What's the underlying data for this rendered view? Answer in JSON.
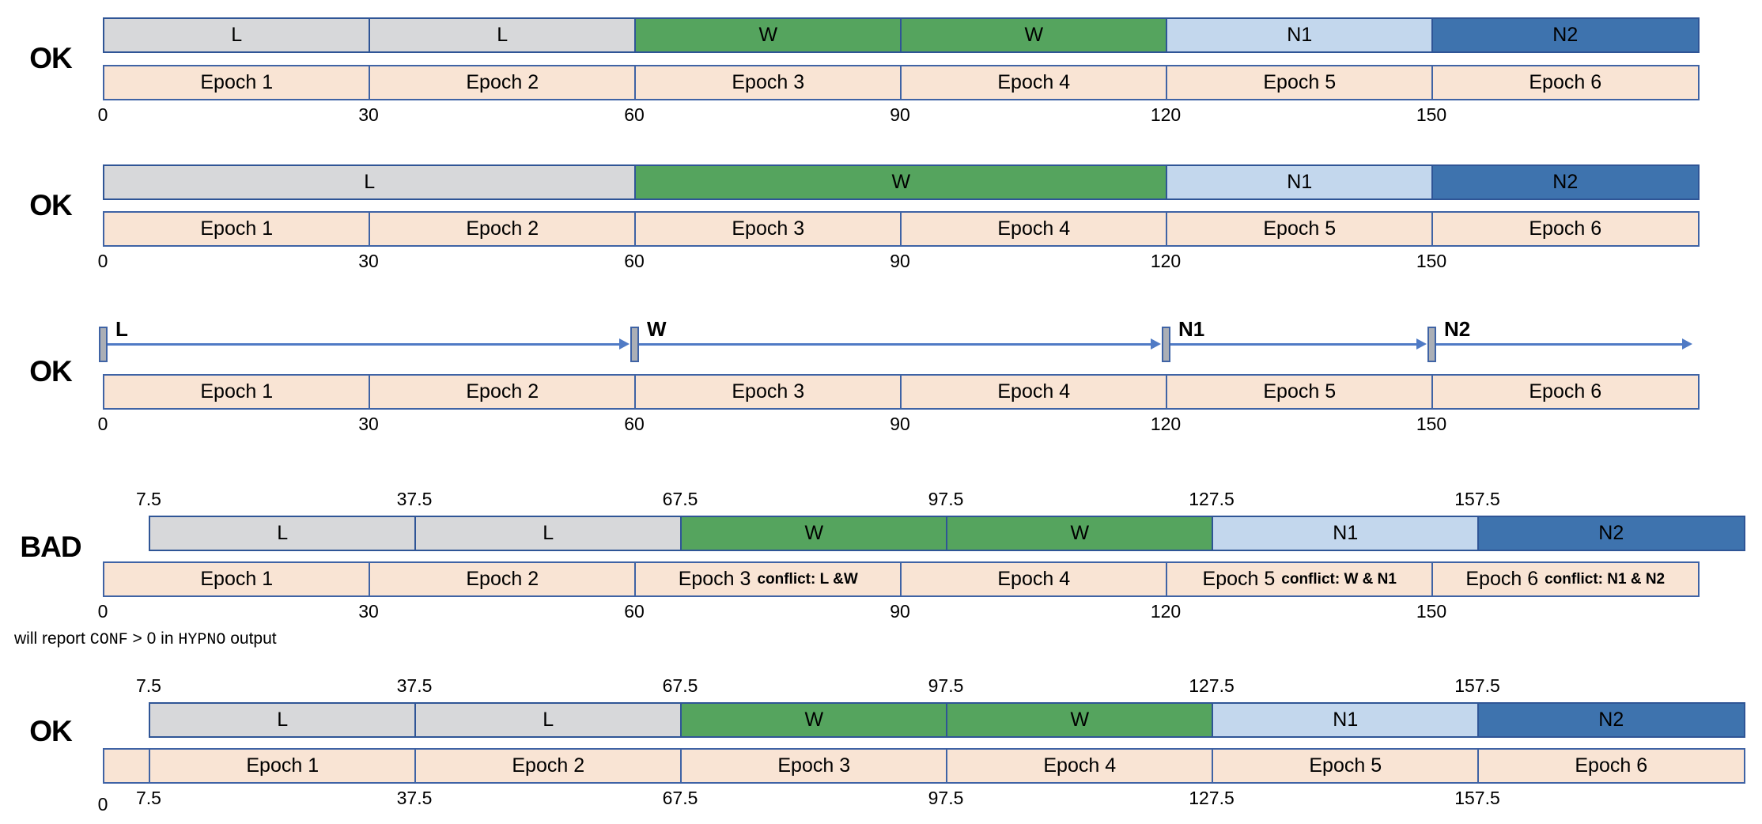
{
  "colors": {
    "stage_border": "#2f5596",
    "epoch_border": "#3f63a5",
    "epoch_fill": "#f9e4d4",
    "arrow": "#4f7ac5",
    "marker_fill": "#abafb6",
    "marker_border": "#3f63a5",
    "stage_fill": {
      "L": "#d7d8da",
      "W": "#55a45e",
      "N1": "#c3d7ed",
      "N2": "#3e73ae"
    }
  },
  "note": {
    "parts": [
      {
        "text": "will report "
      },
      {
        "text": "CONF",
        "mono": true
      },
      {
        "text": " > 0 in "
      },
      {
        "text": "HYPNO",
        "mono": true
      },
      {
        "text": " output"
      }
    ]
  },
  "groups": [
    {
      "verdict": "OK",
      "kind": "bars",
      "shifted": false,
      "epoch_shifted": false,
      "bottom_axis_shifted": false,
      "stages": [
        {
          "label": "L",
          "start": 0,
          "end": 30
        },
        {
          "label": "L",
          "start": 30,
          "end": 60
        },
        {
          "label": "W",
          "start": 60,
          "end": 90
        },
        {
          "label": "W",
          "start": 90,
          "end": 120
        },
        {
          "label": "N1",
          "start": 120,
          "end": 150
        },
        {
          "label": "N2",
          "start": 150,
          "end": 180
        }
      ],
      "epochs": [
        {
          "label": "Epoch 1",
          "start": 0,
          "end": 30
        },
        {
          "label": "Epoch 2",
          "start": 30,
          "end": 60
        },
        {
          "label": "Epoch 3",
          "start": 60,
          "end": 90
        },
        {
          "label": "Epoch 4",
          "start": 90,
          "end": 120
        },
        {
          "label": "Epoch 5",
          "start": 120,
          "end": 150
        },
        {
          "label": "Epoch 6",
          "start": 150,
          "end": 180
        }
      ],
      "bottom_axis": [
        {
          "label": "0",
          "t": 0
        },
        {
          "label": "30",
          "t": 30
        },
        {
          "label": "60",
          "t": 60
        },
        {
          "label": "90",
          "t": 90
        },
        {
          "label": "120",
          "t": 120
        },
        {
          "label": "150",
          "t": 150
        }
      ]
    },
    {
      "verdict": "OK",
      "kind": "bars",
      "shifted": false,
      "epoch_shifted": false,
      "bottom_axis_shifted": false,
      "stages": [
        {
          "label": "L",
          "start": 0,
          "end": 60
        },
        {
          "label": "W",
          "start": 60,
          "end": 120
        },
        {
          "label": "N1",
          "start": 120,
          "end": 150
        },
        {
          "label": "N2",
          "start": 150,
          "end": 180
        }
      ],
      "epochs": [
        {
          "label": "Epoch 1",
          "start": 0,
          "end": 30
        },
        {
          "label": "Epoch 2",
          "start": 30,
          "end": 60
        },
        {
          "label": "Epoch 3",
          "start": 60,
          "end": 90
        },
        {
          "label": "Epoch 4",
          "start": 90,
          "end": 120
        },
        {
          "label": "Epoch 5",
          "start": 120,
          "end": 150
        },
        {
          "label": "Epoch 6",
          "start": 150,
          "end": 180
        }
      ],
      "bottom_axis": [
        {
          "label": "0",
          "t": 0
        },
        {
          "label": "30",
          "t": 30
        },
        {
          "label": "60",
          "t": 60
        },
        {
          "label": "90",
          "t": 90
        },
        {
          "label": "120",
          "t": 120
        },
        {
          "label": "150",
          "t": 150
        }
      ]
    },
    {
      "verdict": "OK",
      "kind": "markers",
      "shifted": false,
      "epoch_shifted": false,
      "bottom_axis_shifted": false,
      "markers": [
        {
          "label": "L",
          "t": 0
        },
        {
          "label": "W",
          "t": 60
        },
        {
          "label": "N1",
          "t": 120
        },
        {
          "label": "N2",
          "t": 150
        }
      ],
      "arrow_end_t": 180,
      "epochs": [
        {
          "label": "Epoch 1",
          "start": 0,
          "end": 30
        },
        {
          "label": "Epoch 2",
          "start": 30,
          "end": 60
        },
        {
          "label": "Epoch 3",
          "start": 60,
          "end": 90
        },
        {
          "label": "Epoch 4",
          "start": 90,
          "end": 120
        },
        {
          "label": "Epoch 5",
          "start": 120,
          "end": 150
        },
        {
          "label": "Epoch 6",
          "start": 150,
          "end": 180
        }
      ],
      "bottom_axis": [
        {
          "label": "0",
          "t": 0
        },
        {
          "label": "30",
          "t": 30
        },
        {
          "label": "60",
          "t": 60
        },
        {
          "label": "90",
          "t": 90
        },
        {
          "label": "120",
          "t": 120
        },
        {
          "label": "150",
          "t": 150
        }
      ]
    },
    {
      "verdict": "BAD",
      "kind": "bars",
      "shifted": true,
      "epoch_shifted": false,
      "bottom_axis_shifted": false,
      "top_axis": [
        {
          "label": "7.5",
          "t": 7.5
        },
        {
          "label": "37.5",
          "t": 37.5
        },
        {
          "label": "67.5",
          "t": 67.5
        },
        {
          "label": "97.5",
          "t": 97.5
        },
        {
          "label": "127.5",
          "t": 127.5
        },
        {
          "label": "157.5",
          "t": 157.5
        }
      ],
      "stages": [
        {
          "label": "L",
          "start": 7.5,
          "end": 37.5
        },
        {
          "label": "L",
          "start": 37.5,
          "end": 67.5
        },
        {
          "label": "W",
          "start": 67.5,
          "end": 97.5
        },
        {
          "label": "W",
          "start": 97.5,
          "end": 127.5
        },
        {
          "label": "N1",
          "start": 127.5,
          "end": 157.5
        },
        {
          "label": "N2",
          "start": 157.5,
          "end": 187.5
        }
      ],
      "epochs": [
        {
          "label": "Epoch 1",
          "start": 0,
          "end": 30
        },
        {
          "label": "Epoch 2",
          "start": 30,
          "end": 60
        },
        {
          "label": "Epoch 3",
          "conflict": "conflict: L &W",
          "start": 60,
          "end": 90
        },
        {
          "label": "Epoch 4",
          "start": 90,
          "end": 120
        },
        {
          "label": "Epoch 5",
          "conflict": "conflict: W & N1",
          "start": 120,
          "end": 150
        },
        {
          "label": "Epoch 6",
          "conflict": "conflict: N1 & N2",
          "start": 150,
          "end": 180
        }
      ],
      "bottom_axis": [
        {
          "label": "0",
          "t": 0
        },
        {
          "label": "30",
          "t": 30
        },
        {
          "label": "60",
          "t": 60
        },
        {
          "label": "90",
          "t": 90
        },
        {
          "label": "120",
          "t": 120
        },
        {
          "label": "150",
          "t": 150
        }
      ]
    },
    {
      "verdict": "OK",
      "kind": "bars",
      "shifted": true,
      "epoch_shifted": true,
      "bottom_axis_shifted": true,
      "top_axis": [
        {
          "label": "7.5",
          "t": 7.5
        },
        {
          "label": "37.5",
          "t": 37.5
        },
        {
          "label": "67.5",
          "t": 67.5
        },
        {
          "label": "97.5",
          "t": 97.5
        },
        {
          "label": "127.5",
          "t": 127.5
        },
        {
          "label": "157.5",
          "t": 157.5
        }
      ],
      "stages": [
        {
          "label": "L",
          "start": 7.5,
          "end": 37.5
        },
        {
          "label": "L",
          "start": 37.5,
          "end": 67.5
        },
        {
          "label": "W",
          "start": 67.5,
          "end": 97.5
        },
        {
          "label": "W",
          "start": 97.5,
          "end": 127.5
        },
        {
          "label": "N1",
          "start": 127.5,
          "end": 157.5
        },
        {
          "label": "N2",
          "start": 157.5,
          "end": 187.5
        }
      ],
      "epochs": [
        {
          "label": "",
          "start": 0,
          "end": 7.5,
          "narrow": true
        },
        {
          "label": "Epoch 1",
          "start": 7.5,
          "end": 37.5
        },
        {
          "label": "Epoch 2",
          "start": 37.5,
          "end": 67.5
        },
        {
          "label": "Epoch 3",
          "start": 67.5,
          "end": 97.5
        },
        {
          "label": "Epoch 4",
          "start": 97.5,
          "end": 127.5
        },
        {
          "label": "Epoch 5",
          "start": 127.5,
          "end": 157.5
        },
        {
          "label": "Epoch 6",
          "start": 157.5,
          "end": 187.5
        }
      ],
      "bottom_axis": [
        {
          "label": "0",
          "t": 0,
          "plain": true
        },
        {
          "label": "7.5",
          "t": 7.5
        },
        {
          "label": "37.5",
          "t": 37.5
        },
        {
          "label": "67.5",
          "t": 67.5
        },
        {
          "label": "97.5",
          "t": 97.5
        },
        {
          "label": "127.5",
          "t": 127.5
        },
        {
          "label": "157.5",
          "t": 157.5
        }
      ]
    }
  ]
}
